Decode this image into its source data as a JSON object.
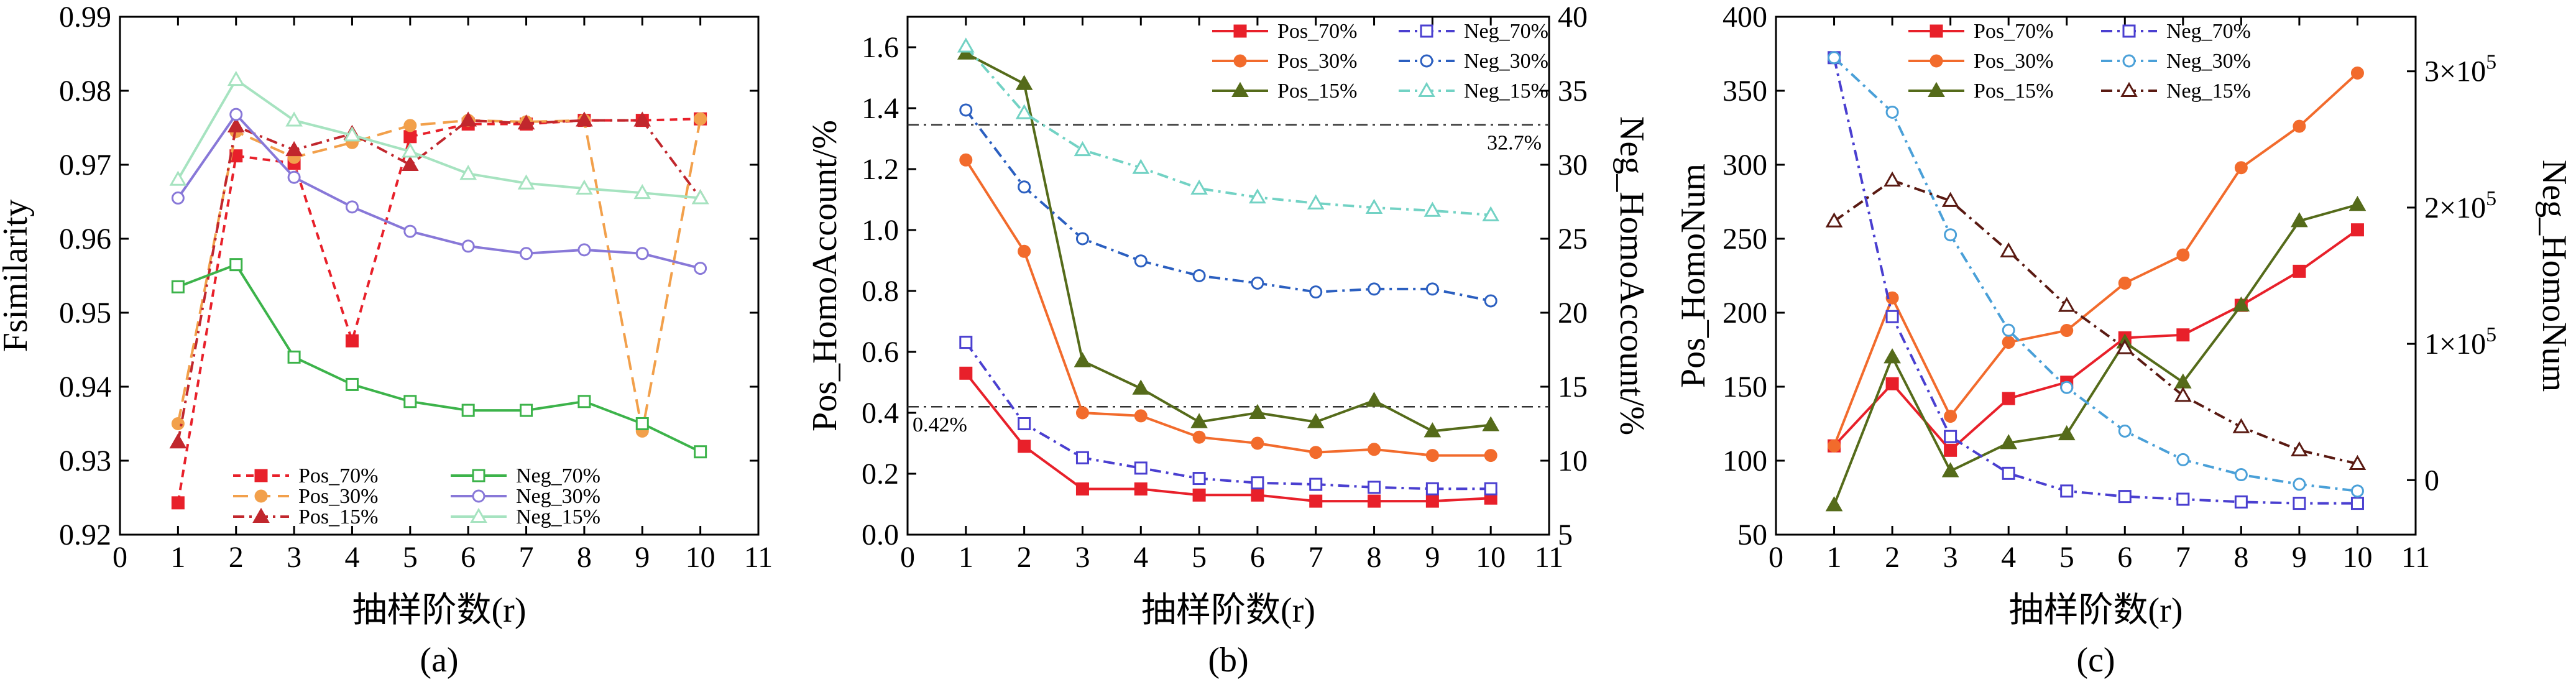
{
  "chart_data": [
    {
      "type": "line",
      "panel_label": "(a)",
      "xlabel": "抽样阶数(r)",
      "ylabel": "Fsimilarity",
      "xlim": [
        0,
        11
      ],
      "ylim": [
        0.92,
        0.99
      ],
      "x_ticks": [
        "0",
        "1",
        "2",
        "3",
        "4",
        "5",
        "6",
        "7",
        "8",
        "9",
        "10",
        "11"
      ],
      "y_ticks": [
        "0.92",
        "0.93",
        "0.94",
        "0.95",
        "0.96",
        "0.97",
        "0.98",
        "0.99"
      ],
      "legend_placement": "bottom-center",
      "x": [
        1,
        2,
        3,
        4,
        5,
        6,
        7,
        8,
        9,
        10
      ],
      "series": [
        {
          "name": "Pos_70%",
          "color": "#e8202a",
          "dash": "short",
          "marker": "square-filled",
          "values": [
            0.9243,
            0.9712,
            0.9702,
            0.9462,
            0.9738,
            0.9755,
            0.9755,
            0.976,
            0.976,
            0.9762
          ]
        },
        {
          "name": "Pos_30%",
          "color": "#f2a04b",
          "dash": "long",
          "marker": "circle-filled",
          "values": [
            0.935,
            0.9745,
            0.971,
            0.973,
            0.9753,
            0.976,
            0.9758,
            0.976,
            0.934,
            0.9762
          ]
        },
        {
          "name": "Pos_15%",
          "color": "#c1272d",
          "dash": "dashdot",
          "marker": "triangle-filled",
          "values": [
            0.9325,
            0.9752,
            0.972,
            0.9742,
            0.97,
            0.976,
            0.9756,
            0.976,
            0.976,
            0.9655
          ]
        },
        {
          "name": "Neg_70%",
          "color": "#3cb34a",
          "dash": "solid",
          "marker": "square-open",
          "values": [
            0.9535,
            0.9565,
            0.944,
            0.9403,
            0.938,
            0.9368,
            0.9368,
            0.938,
            0.935,
            0.9312
          ]
        },
        {
          "name": "Neg_30%",
          "color": "#8878d8",
          "dash": "solid",
          "marker": "circle-open",
          "values": [
            0.9655,
            0.9768,
            0.9683,
            0.9643,
            0.961,
            0.959,
            0.958,
            0.9585,
            0.958,
            0.956
          ]
        },
        {
          "name": "Neg_15%",
          "color": "#a6e3c0",
          "dash": "solid",
          "marker": "triangle-open",
          "values": [
            0.968,
            0.9815,
            0.976,
            0.974,
            0.9718,
            0.9688,
            0.9675,
            0.9668,
            0.9662,
            0.9655
          ]
        }
      ]
    },
    {
      "type": "line",
      "panel_label": "(b)",
      "xlabel": "抽样阶数(r)",
      "ylabel": "Pos_HomoAccount/%",
      "ylabel_right": "Neg_HomoAccount/%",
      "xlim": [
        0,
        11
      ],
      "ylim": [
        0,
        1.7
      ],
      "ylim_right": [
        5,
        40
      ],
      "x_ticks": [
        "0",
        "1",
        "2",
        "3",
        "4",
        "5",
        "6",
        "7",
        "8",
        "9",
        "10",
        "11"
      ],
      "y_ticks": [
        "0.0",
        "0.2",
        "0.4",
        "0.6",
        "0.8",
        "1.0",
        "1.2",
        "1.4",
        "1.6"
      ],
      "y_ticks_right": [
        "5",
        "10",
        "15",
        "20",
        "25",
        "30",
        "35",
        "40"
      ],
      "legend_placement": "top-right",
      "reference_lines": [
        {
          "axis": "right",
          "value": 32.7,
          "label": "32.7%"
        },
        {
          "axis": "left",
          "value": 0.42,
          "label": "0.42%"
        }
      ],
      "x": [
        1,
        2,
        3,
        4,
        5,
        6,
        7,
        8,
        9,
        10
      ],
      "series": [
        {
          "name": "Pos_70%",
          "axis": "left",
          "color": "#e8202a",
          "dash": "solid",
          "marker": "square-filled",
          "values": [
            0.53,
            0.29,
            0.15,
            0.15,
            0.13,
            0.13,
            0.11,
            0.11,
            0.11,
            0.12
          ]
        },
        {
          "name": "Pos_30%",
          "axis": "left",
          "color": "#f26b2c",
          "dash": "solid",
          "marker": "circle-filled",
          "values": [
            1.23,
            0.93,
            0.4,
            0.39,
            0.32,
            0.3,
            0.27,
            0.28,
            0.26,
            0.26
          ]
        },
        {
          "name": "Pos_15%",
          "axis": "left",
          "color": "#556b1a",
          "dash": "solid",
          "marker": "triangle-filled",
          "values": [
            1.58,
            1.48,
            0.57,
            0.48,
            0.37,
            0.4,
            0.37,
            0.44,
            0.34,
            0.36
          ]
        },
        {
          "name": "Neg_70%",
          "axis": "right",
          "color": "#4a3fd0",
          "dash": "dashdot",
          "marker": "square-open",
          "values": [
            18.0,
            12.5,
            10.2,
            9.5,
            8.8,
            8.5,
            8.4,
            8.2,
            8.1,
            8.1
          ]
        },
        {
          "name": "Neg_30%",
          "axis": "right",
          "color": "#2b5fc0",
          "dash": "dashdot",
          "marker": "circle-open",
          "values": [
            33.7,
            28.5,
            25.0,
            23.5,
            22.5,
            22.0,
            21.4,
            21.6,
            21.6,
            20.8
          ]
        },
        {
          "name": "Neg_15%",
          "axis": "right",
          "color": "#72d2c4",
          "dash": "dashdot",
          "marker": "triangle-open",
          "values": [
            38.0,
            33.5,
            31.0,
            29.8,
            28.4,
            27.8,
            27.4,
            27.1,
            26.9,
            26.6
          ]
        }
      ]
    },
    {
      "type": "line",
      "panel_label": "(c)",
      "xlabel": "抽样阶数(r)",
      "ylabel": "Pos_HomoNum",
      "ylabel_right": "Neg_HomoNum",
      "xlim": [
        0,
        11
      ],
      "ylim": [
        50,
        400
      ],
      "ylim_right": [
        -40000,
        340000
      ],
      "x_ticks": [
        "0",
        "1",
        "2",
        "3",
        "4",
        "5",
        "6",
        "7",
        "8",
        "9",
        "10",
        "11"
      ],
      "y_ticks": [
        "50",
        "100",
        "150",
        "200",
        "250",
        "300",
        "350",
        "400"
      ],
      "y_ticks_right_values": [
        0,
        100000,
        200000,
        300000
      ],
      "y_ticks_right": [
        "0",
        "1×10",
        "2×10",
        "3×10"
      ],
      "y_ticks_right_exponent": "5",
      "legend_placement": "top-center",
      "x": [
        1,
        2,
        3,
        4,
        5,
        6,
        7,
        8,
        9,
        10
      ],
      "series": [
        {
          "name": "Pos_70%",
          "axis": "left",
          "color": "#e8202a",
          "dash": "solid",
          "marker": "square-filled",
          "values": [
            110,
            152,
            107,
            142,
            153,
            183,
            185,
            205,
            228,
            256
          ]
        },
        {
          "name": "Pos_30%",
          "axis": "left",
          "color": "#f26b2c",
          "dash": "solid",
          "marker": "circle-filled",
          "values": [
            110,
            210,
            130,
            180,
            188,
            220,
            239,
            298,
            326,
            362
          ]
        },
        {
          "name": "Pos_15%",
          "axis": "left",
          "color": "#556b1a",
          "dash": "solid",
          "marker": "triangle-filled",
          "values": [
            70,
            170,
            93,
            112,
            118,
            180,
            153,
            205,
            262,
            273
          ]
        },
        {
          "name": "Neg_70%",
          "axis": "right",
          "color": "#4a3fd0",
          "dash": "dashdot",
          "marker": "square-open",
          "values": [
            310000,
            120000,
            32000,
            5000,
            -8000,
            -12000,
            -14000,
            -16000,
            -17000,
            -17000
          ]
        },
        {
          "name": "Neg_30%",
          "axis": "right",
          "color": "#4aa0d8",
          "dash": "dashdot",
          "marker": "circle-open",
          "values": [
            310000,
            270000,
            180000,
            110000,
            68000,
            36000,
            15000,
            4000,
            -3000,
            -8000
          ]
        },
        {
          "name": "Neg_15%",
          "axis": "right",
          "color": "#5a1a12",
          "dash": "dashdot",
          "marker": "triangle-open",
          "values": [
            190000,
            220000,
            205000,
            168000,
            128000,
            97000,
            62000,
            39000,
            22000,
            12000
          ]
        }
      ]
    }
  ]
}
